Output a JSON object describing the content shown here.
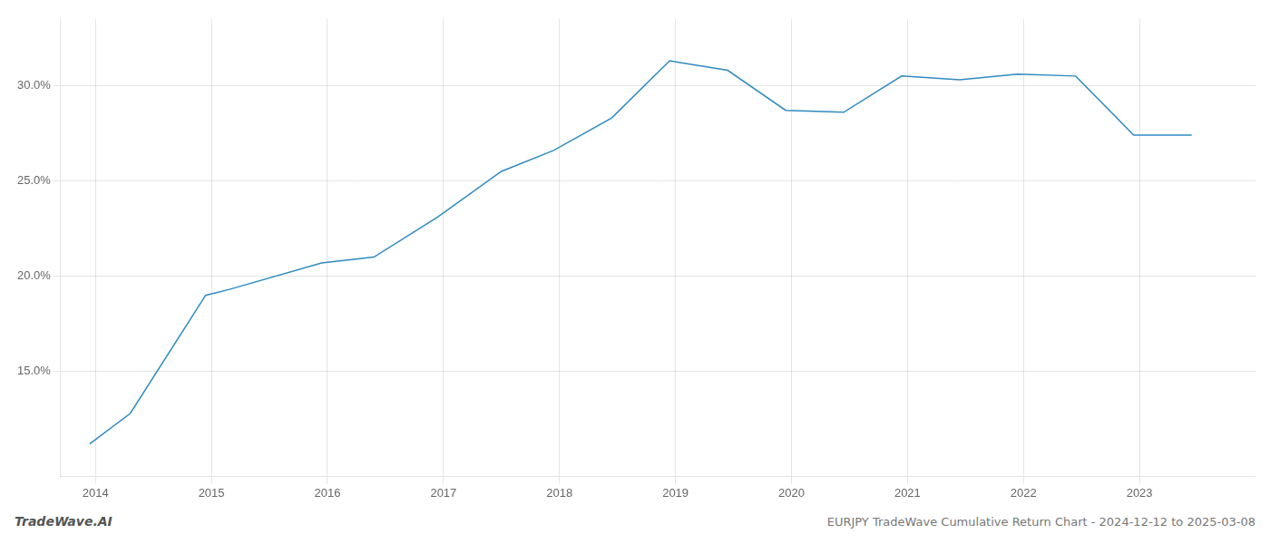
{
  "chart_data": {
    "type": "line",
    "x": [
      2013.95,
      2014.3,
      2014.95,
      2015.15,
      2015.95,
      2016.4,
      2016.95,
      2017.5,
      2017.95,
      2018.45,
      2018.95,
      2019.05,
      2019.45,
      2019.95,
      2020.45,
      2020.95,
      2021.45,
      2021.95,
      2022.45,
      2022.95,
      2023.45
    ],
    "values": [
      11.2,
      12.8,
      19.0,
      19.3,
      20.7,
      21.0,
      23.1,
      25.5,
      26.6,
      28.3,
      31.3,
      31.2,
      30.8,
      28.7,
      28.6,
      30.5,
      30.3,
      30.6,
      30.5,
      27.4,
      27.4
    ],
    "color": "#2e8bc0",
    "xlim": [
      2013.7,
      2024.0
    ],
    "xticks": [
      2014,
      2015,
      2016,
      2017,
      2018,
      2019,
      2020,
      2021,
      2022,
      2023
    ],
    "ylim": [
      9.5,
      33.5
    ],
    "yticks": [
      {
        "value": 15.0,
        "label": "15.0%"
      },
      {
        "value": 20.0,
        "label": "20.0%"
      },
      {
        "value": 25.0,
        "label": "25.0%"
      },
      {
        "value": 30.0,
        "label": "30.0%"
      }
    ],
    "grid": true,
    "annotations": [
      "TradeWave.AI",
      "EURJPY TradeWave Cumulative Return Chart - 2024-12-12 to 2025-03-08"
    ]
  }
}
